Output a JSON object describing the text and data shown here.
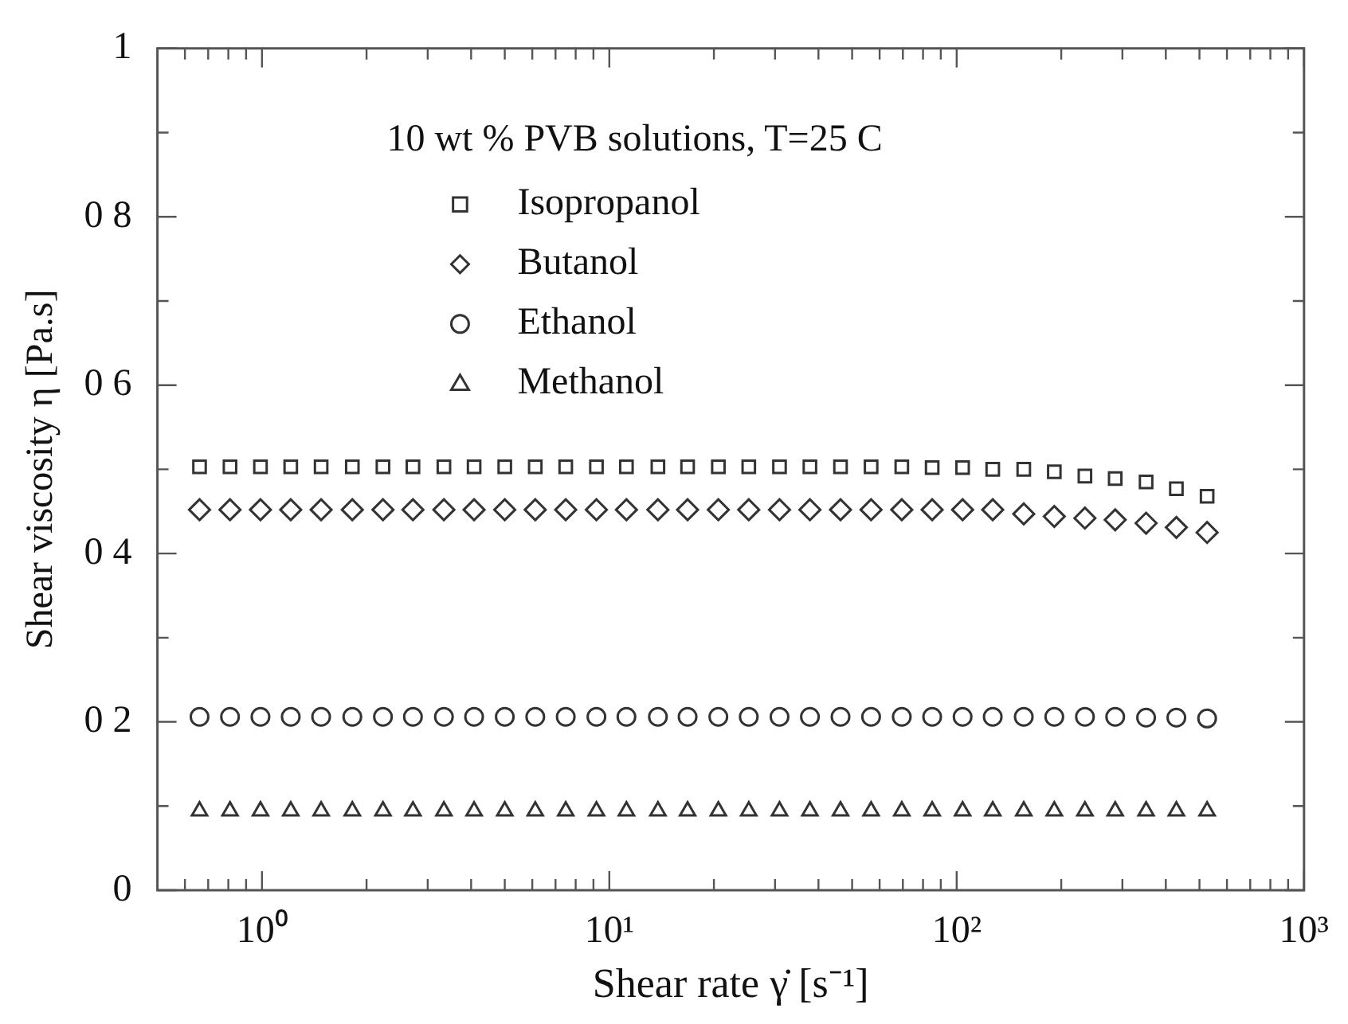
{
  "chart_data": {
    "type": "scatter",
    "legend_title": "10 wt % PVB solutions, T=25 C",
    "xlabel": "Shear rate γ̇ [s⁻¹]",
    "ylabel": "Shear viscosity η [Pa.s]",
    "log": "x",
    "x": [
      0.661,
      0.809,
      0.99,
      1.21,
      1.48,
      1.82,
      2.23,
      2.72,
      3.34,
      4.08,
      5.0,
      6.12,
      7.49,
      9.18,
      11.2,
      13.8,
      16.8,
      20.6,
      25.2,
      30.9,
      37.8,
      46.3,
      56.7,
      69.5,
      85.0,
      104,
      127,
      156,
      191,
      234,
      286,
      351,
      429,
      526
    ],
    "series": [
      {
        "name": "Isopropanol",
        "color": "#333333",
        "marker": "square",
        "values": [
          0.503,
          0.503,
          0.503,
          0.503,
          0.503,
          0.503,
          0.503,
          0.503,
          0.503,
          0.503,
          0.503,
          0.503,
          0.503,
          0.503,
          0.503,
          0.503,
          0.503,
          0.503,
          0.503,
          0.503,
          0.503,
          0.503,
          0.503,
          0.503,
          0.502,
          0.502,
          0.5,
          0.5,
          0.497,
          0.492,
          0.489,
          0.485,
          0.477,
          0.468
        ]
      },
      {
        "name": "Butanol",
        "color": "#333333",
        "marker": "diamond",
        "values": [
          0.452,
          0.452,
          0.452,
          0.452,
          0.452,
          0.452,
          0.452,
          0.452,
          0.452,
          0.452,
          0.452,
          0.452,
          0.452,
          0.452,
          0.452,
          0.452,
          0.452,
          0.452,
          0.452,
          0.452,
          0.452,
          0.452,
          0.452,
          0.452,
          0.452,
          0.452,
          0.452,
          0.447,
          0.444,
          0.442,
          0.44,
          0.436,
          0.431,
          0.425
        ]
      },
      {
        "name": "Ethanol",
        "color": "#333333",
        "marker": "circle",
        "values": [
          0.206,
          0.206,
          0.206,
          0.206,
          0.206,
          0.206,
          0.206,
          0.206,
          0.206,
          0.206,
          0.206,
          0.206,
          0.206,
          0.206,
          0.206,
          0.206,
          0.206,
          0.206,
          0.206,
          0.206,
          0.206,
          0.206,
          0.206,
          0.206,
          0.206,
          0.206,
          0.206,
          0.206,
          0.206,
          0.206,
          0.206,
          0.205,
          0.205,
          0.204
        ]
      },
      {
        "name": "Methanol",
        "color": "#333333",
        "marker": "triangle",
        "values": [
          0.094,
          0.094,
          0.094,
          0.094,
          0.094,
          0.094,
          0.094,
          0.094,
          0.094,
          0.094,
          0.094,
          0.094,
          0.094,
          0.094,
          0.094,
          0.094,
          0.094,
          0.094,
          0.094,
          0.094,
          0.094,
          0.094,
          0.094,
          0.094,
          0.094,
          0.094,
          0.094,
          0.094,
          0.094,
          0.094,
          0.094,
          0.094,
          0.094,
          0.094
        ]
      }
    ],
    "xlim": [
      0.5,
      1000
    ],
    "xticks": [
      {
        "value": 0.6,
        "label": null
      },
      {
        "value": 0.7,
        "label": null
      },
      {
        "value": 0.8,
        "label": null
      },
      {
        "value": 0.9,
        "label": null
      },
      {
        "value": 1,
        "label": "10⁰"
      },
      {
        "value": 2,
        "label": null
      },
      {
        "value": 3,
        "label": null
      },
      {
        "value": 4,
        "label": null
      },
      {
        "value": 5,
        "label": null
      },
      {
        "value": 6,
        "label": null
      },
      {
        "value": 7,
        "label": null
      },
      {
        "value": 8,
        "label": null
      },
      {
        "value": 9,
        "label": null
      },
      {
        "value": 10,
        "label": "10¹"
      },
      {
        "value": 20,
        "label": null
      },
      {
        "value": 30,
        "label": null
      },
      {
        "value": 40,
        "label": null
      },
      {
        "value": 50,
        "label": null
      },
      {
        "value": 60,
        "label": null
      },
      {
        "value": 70,
        "label": null
      },
      {
        "value": 80,
        "label": null
      },
      {
        "value": 90,
        "label": null
      },
      {
        "value": 100,
        "label": "10²"
      },
      {
        "value": 200,
        "label": null
      },
      {
        "value": 300,
        "label": null
      },
      {
        "value": 400,
        "label": null
      },
      {
        "value": 500,
        "label": null
      },
      {
        "value": 600,
        "label": null
      },
      {
        "value": 700,
        "label": null
      },
      {
        "value": 800,
        "label": null
      },
      {
        "value": 900,
        "label": null
      },
      {
        "value": 1000,
        "label": "10³"
      }
    ],
    "ylim": [
      0,
      1
    ],
    "yticks": [
      0,
      {
        "value": 0.1,
        "label": null
      },
      {
        "value": 0.2,
        "label": "0 2"
      },
      {
        "value": 0.3,
        "label": null
      },
      {
        "value": 0.4,
        "label": "0 4"
      },
      {
        "value": 0.5,
        "label": null
      },
      {
        "value": 0.6,
        "label": "0 6"
      },
      {
        "value": 0.7,
        "label": null
      },
      {
        "value": 0.8,
        "label": "0 8"
      },
      {
        "value": 0.9,
        "label": null
      },
      1
    ],
    "grid": false,
    "legend": "top"
  }
}
